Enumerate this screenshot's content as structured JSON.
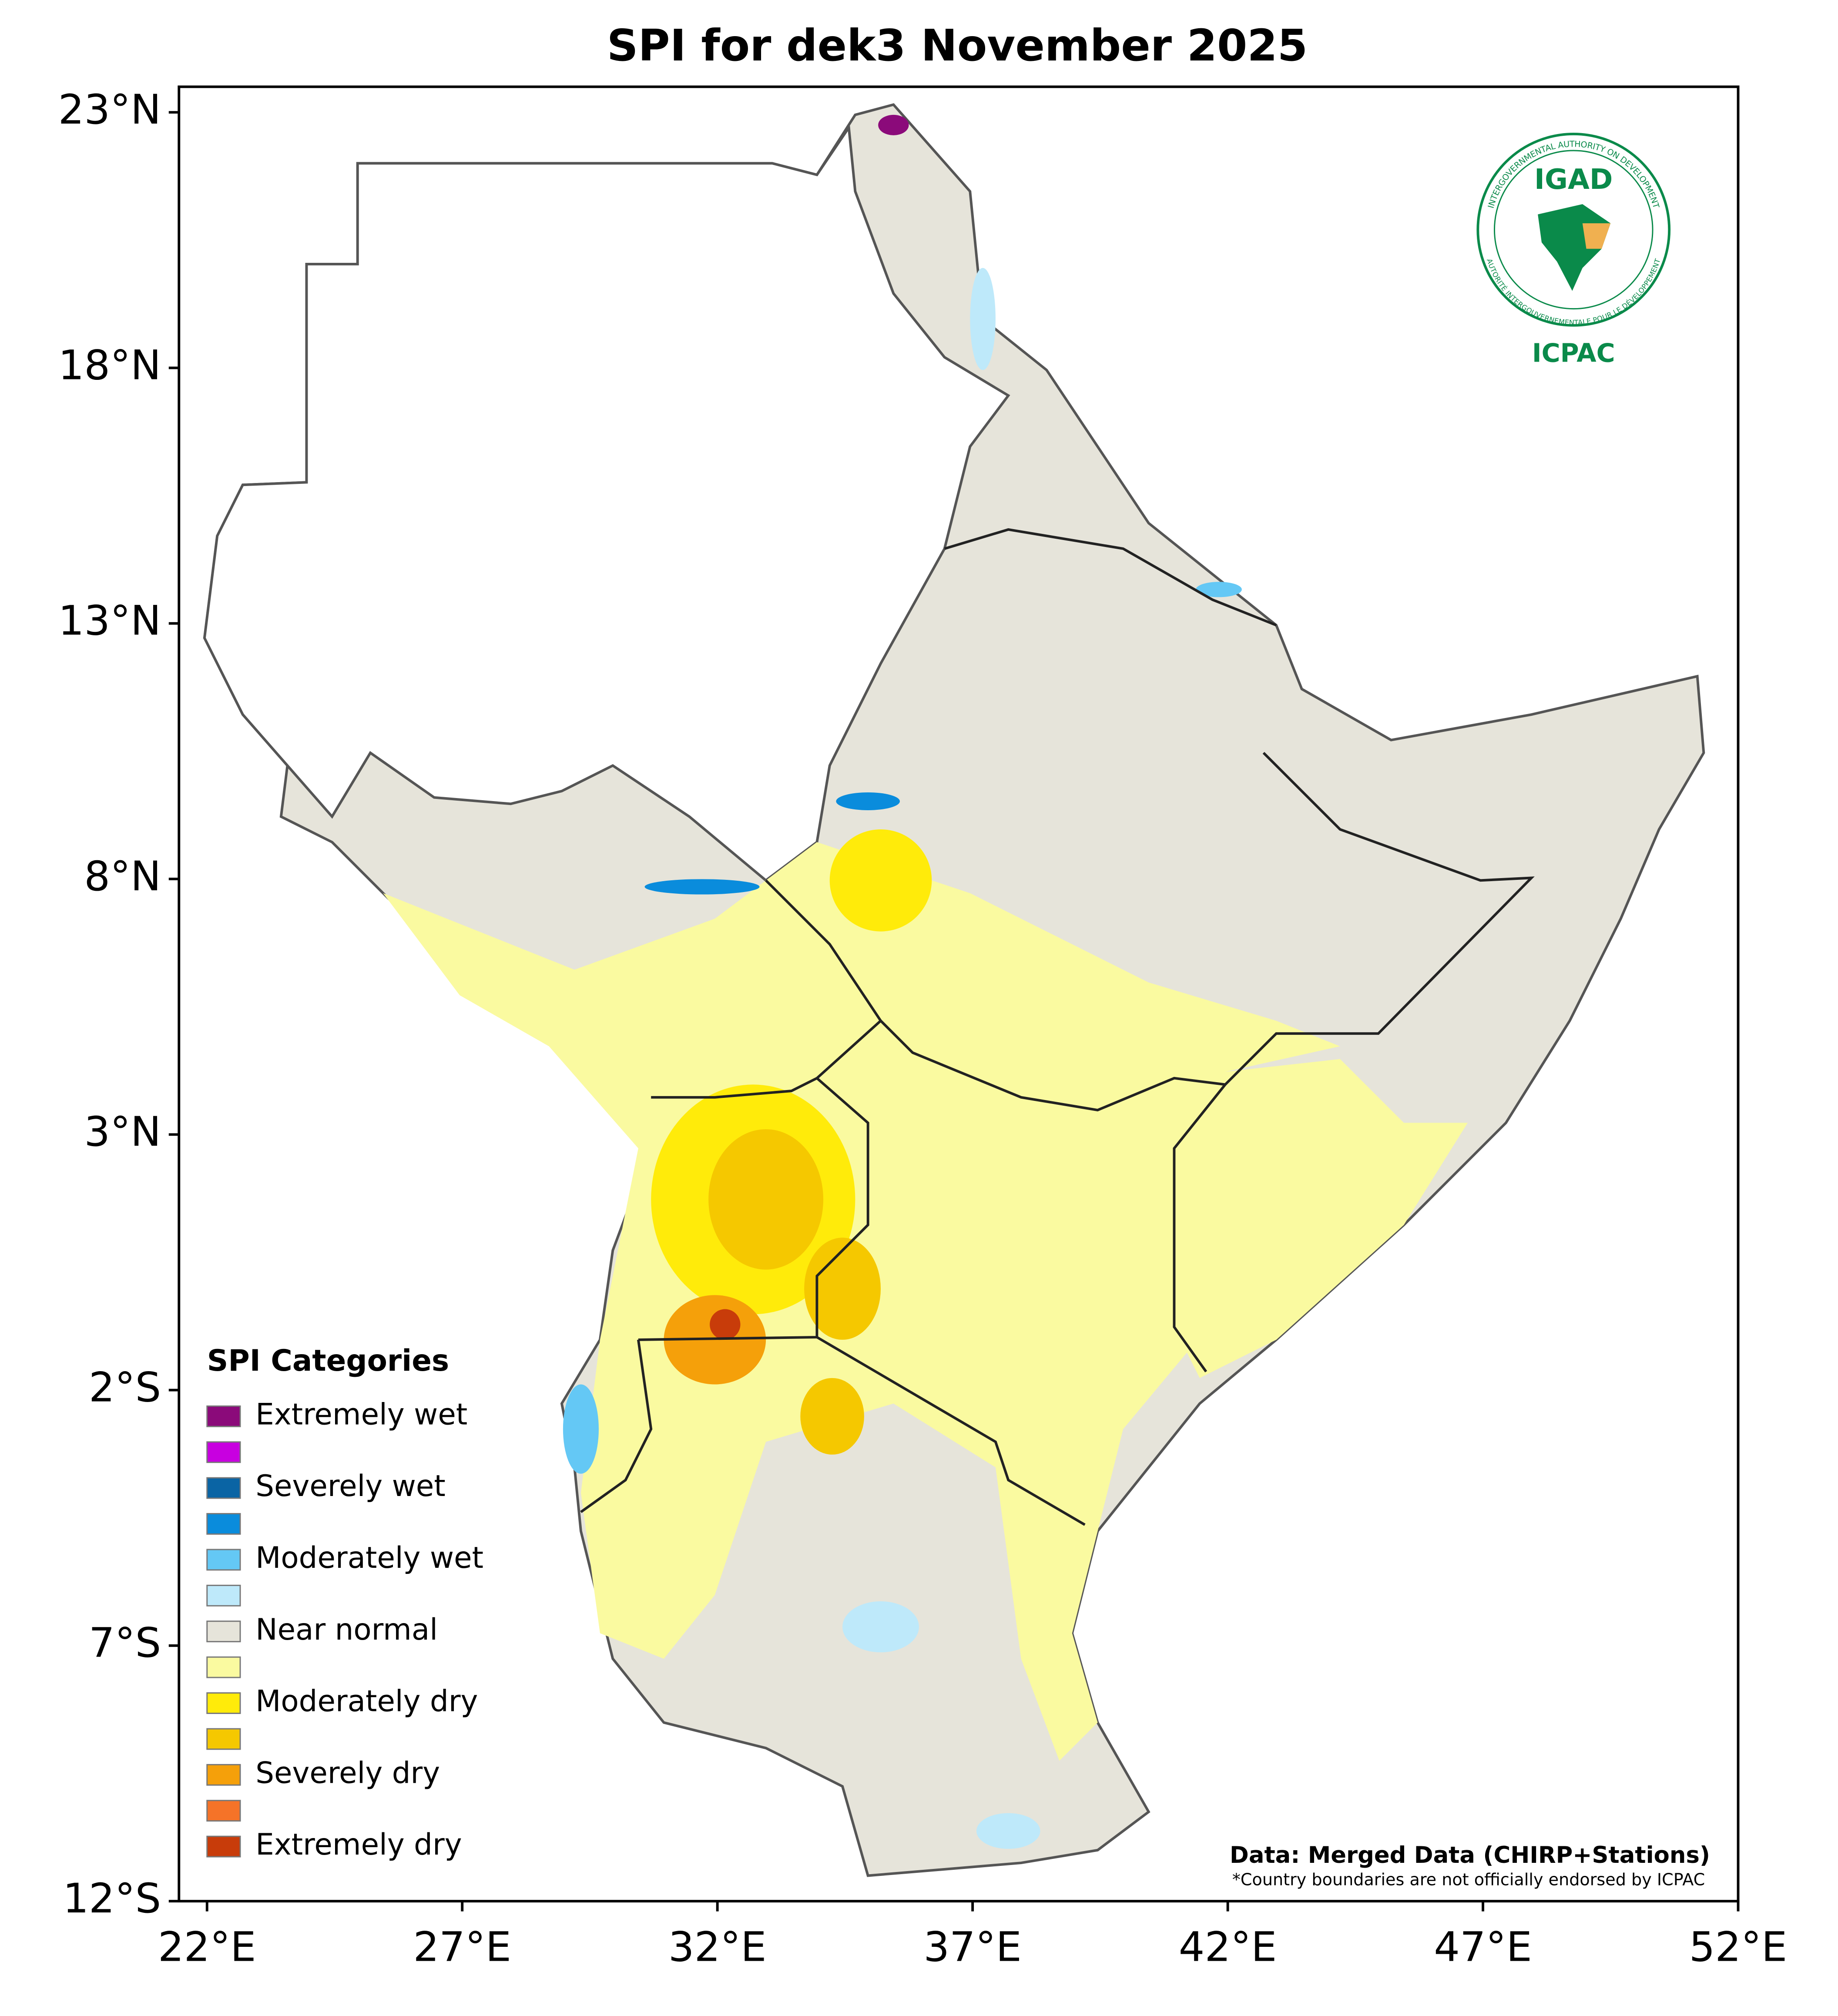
{
  "title": "SPI for dek3 November 2025",
  "xlim": [
    21.45,
    52
  ],
  "ylim": [
    -12,
    23.5
  ],
  "xticks": [
    {
      "value": 22,
      "label": "22°E"
    },
    {
      "value": 27,
      "label": "27°E"
    },
    {
      "value": 32,
      "label": "32°E"
    },
    {
      "value": 37,
      "label": "37°E"
    },
    {
      "value": 42,
      "label": "42°E"
    },
    {
      "value": 47,
      "label": "47°E"
    },
    {
      "value": 52,
      "label": "52°E"
    }
  ],
  "yticks": [
    {
      "value": -12,
      "label": "12°S"
    },
    {
      "value": -7,
      "label": "7°S"
    },
    {
      "value": -2,
      "label": "2°S"
    },
    {
      "value": 3,
      "label": "3°N"
    },
    {
      "value": 8,
      "label": "8°N"
    },
    {
      "value": 13,
      "label": "13°N"
    },
    {
      "value": 18,
      "label": "18°N"
    },
    {
      "value": 23,
      "label": "23°N"
    }
  ],
  "legend": {
    "title": "SPI Categories",
    "items": [
      {
        "label": "Extremely wet",
        "color": "#8b0a7a"
      },
      {
        "color": "#c800e0"
      },
      {
        "label": "Severely wet",
        "color": "#0a64a4"
      },
      {
        "color": "#0a8cdc"
      },
      {
        "label": "Moderately wet",
        "color": "#64c8f5"
      },
      {
        "color": "#bee9fa"
      },
      {
        "label": "Near normal",
        "color": "#e6e4da"
      },
      {
        "color": "#fafaa0"
      },
      {
        "label": "Moderately dry",
        "color": "#ffeb0a"
      },
      {
        "color": "#f5c800"
      },
      {
        "label": "Severely dry",
        "color": "#f5a00a"
      },
      {
        "color": "#f57328"
      },
      {
        "label": "Extremely dry",
        "color": "#c83c0a"
      }
    ]
  },
  "credits": {
    "source": "Data: Merged Data (CHIRP+Stations)",
    "note": "*Country boundaries are not officially endorsed by ICPAC"
  },
  "logo": {
    "name": "IGAD",
    "ring_top": "INTERGOVERNMENTAL AUTHORITY ON DEVELOPMENT",
    "ring_bottom": "AUTORITÉ INTERGOUVERNEMENTALE POUR LE DÉVELOPPEMENT",
    "centre": "ICPAC"
  }
}
